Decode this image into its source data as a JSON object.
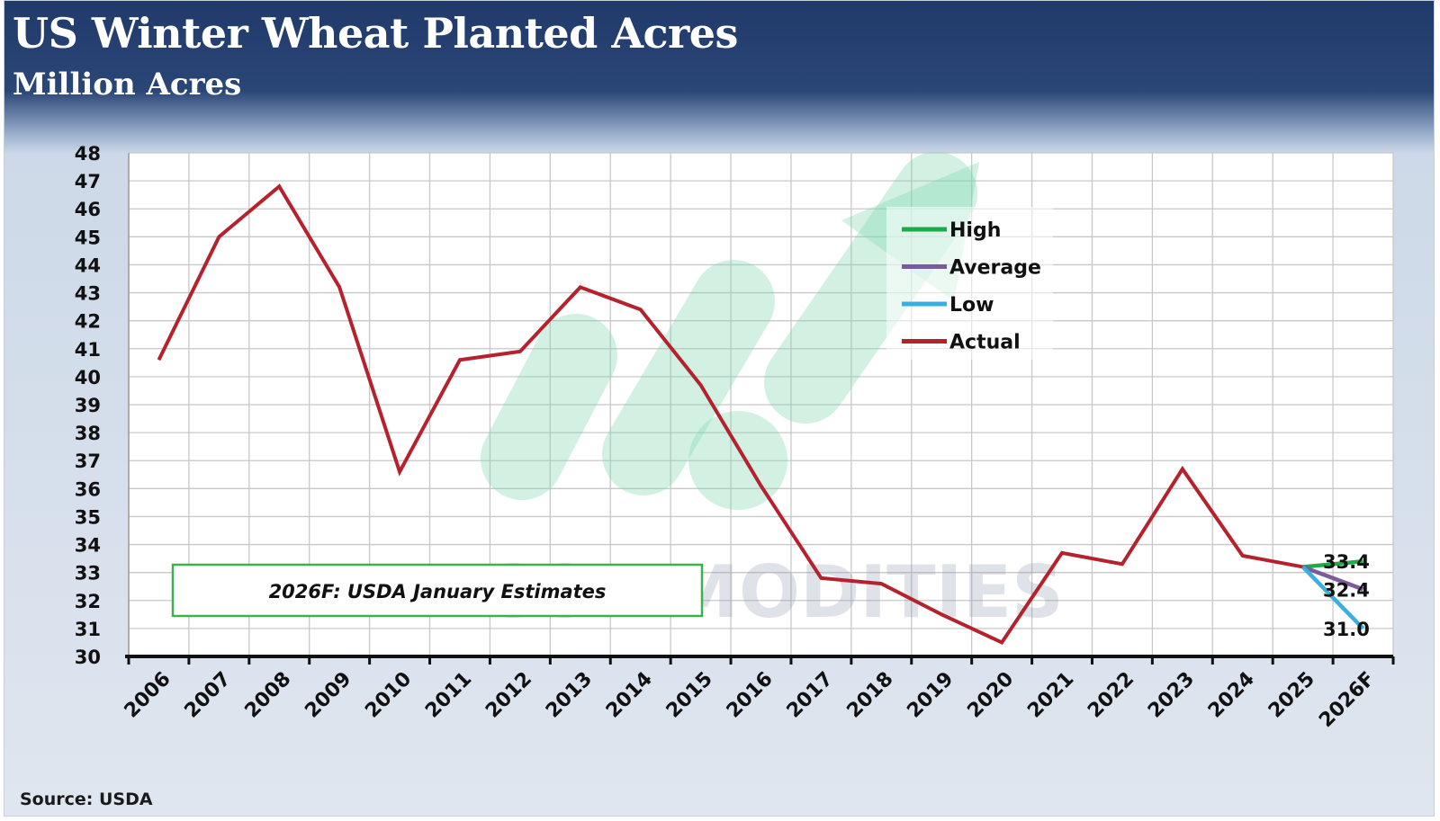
{
  "header": {
    "title": "US Winter Wheat Planted Acres",
    "subtitle": "Million Acres"
  },
  "footer": {
    "source": "Source: USDA"
  },
  "annotation": "2026F: USDA January Estimates",
  "watermark": "VN COMMODITIES",
  "colors": {
    "actual": "#b5212d",
    "high": "#1faa4a",
    "average": "#7b5b9c",
    "low": "#3aaee0",
    "annotation_border": "#3bb24a",
    "watermark_icon": "#7fd6ae"
  },
  "chart_data": {
    "type": "line",
    "categories": [
      "2006",
      "2007",
      "2008",
      "2009",
      "2010",
      "2011",
      "2012",
      "2013",
      "2014",
      "2015",
      "2016",
      "2017",
      "2018",
      "2019",
      "2020",
      "2021",
      "2022",
      "2023",
      "2024",
      "2025",
      "2026F"
    ],
    "series": [
      {
        "name": "Actual",
        "values": [
          40.6,
          45.0,
          46.8,
          43.2,
          36.6,
          40.6,
          40.9,
          43.2,
          42.4,
          39.7,
          36.1,
          32.8,
          32.6,
          31.5,
          30.5,
          33.7,
          33.3,
          36.7,
          33.6,
          33.2,
          null
        ]
      },
      {
        "name": "High",
        "values": [
          null,
          null,
          null,
          null,
          null,
          null,
          null,
          null,
          null,
          null,
          null,
          null,
          null,
          null,
          null,
          null,
          null,
          null,
          null,
          33.2,
          33.4
        ]
      },
      {
        "name": "Average",
        "values": [
          null,
          null,
          null,
          null,
          null,
          null,
          null,
          null,
          null,
          null,
          null,
          null,
          null,
          null,
          null,
          null,
          null,
          null,
          null,
          33.2,
          32.4
        ]
      },
      {
        "name": "Low",
        "values": [
          null,
          null,
          null,
          null,
          null,
          null,
          null,
          null,
          null,
          null,
          null,
          null,
          null,
          null,
          null,
          null,
          null,
          null,
          null,
          33.2,
          31.0
        ]
      }
    ],
    "end_labels": [
      "33.4",
      "32.4",
      "31.0"
    ],
    "legend_order": [
      "High",
      "Average",
      "Low",
      "Actual"
    ],
    "legend_position": "top-center-right",
    "ylim": [
      30,
      48
    ],
    "yticks": [
      30,
      31,
      32,
      33,
      34,
      35,
      36,
      37,
      38,
      39,
      40,
      41,
      42,
      43,
      44,
      45,
      46,
      47,
      48
    ],
    "grid": true
  }
}
